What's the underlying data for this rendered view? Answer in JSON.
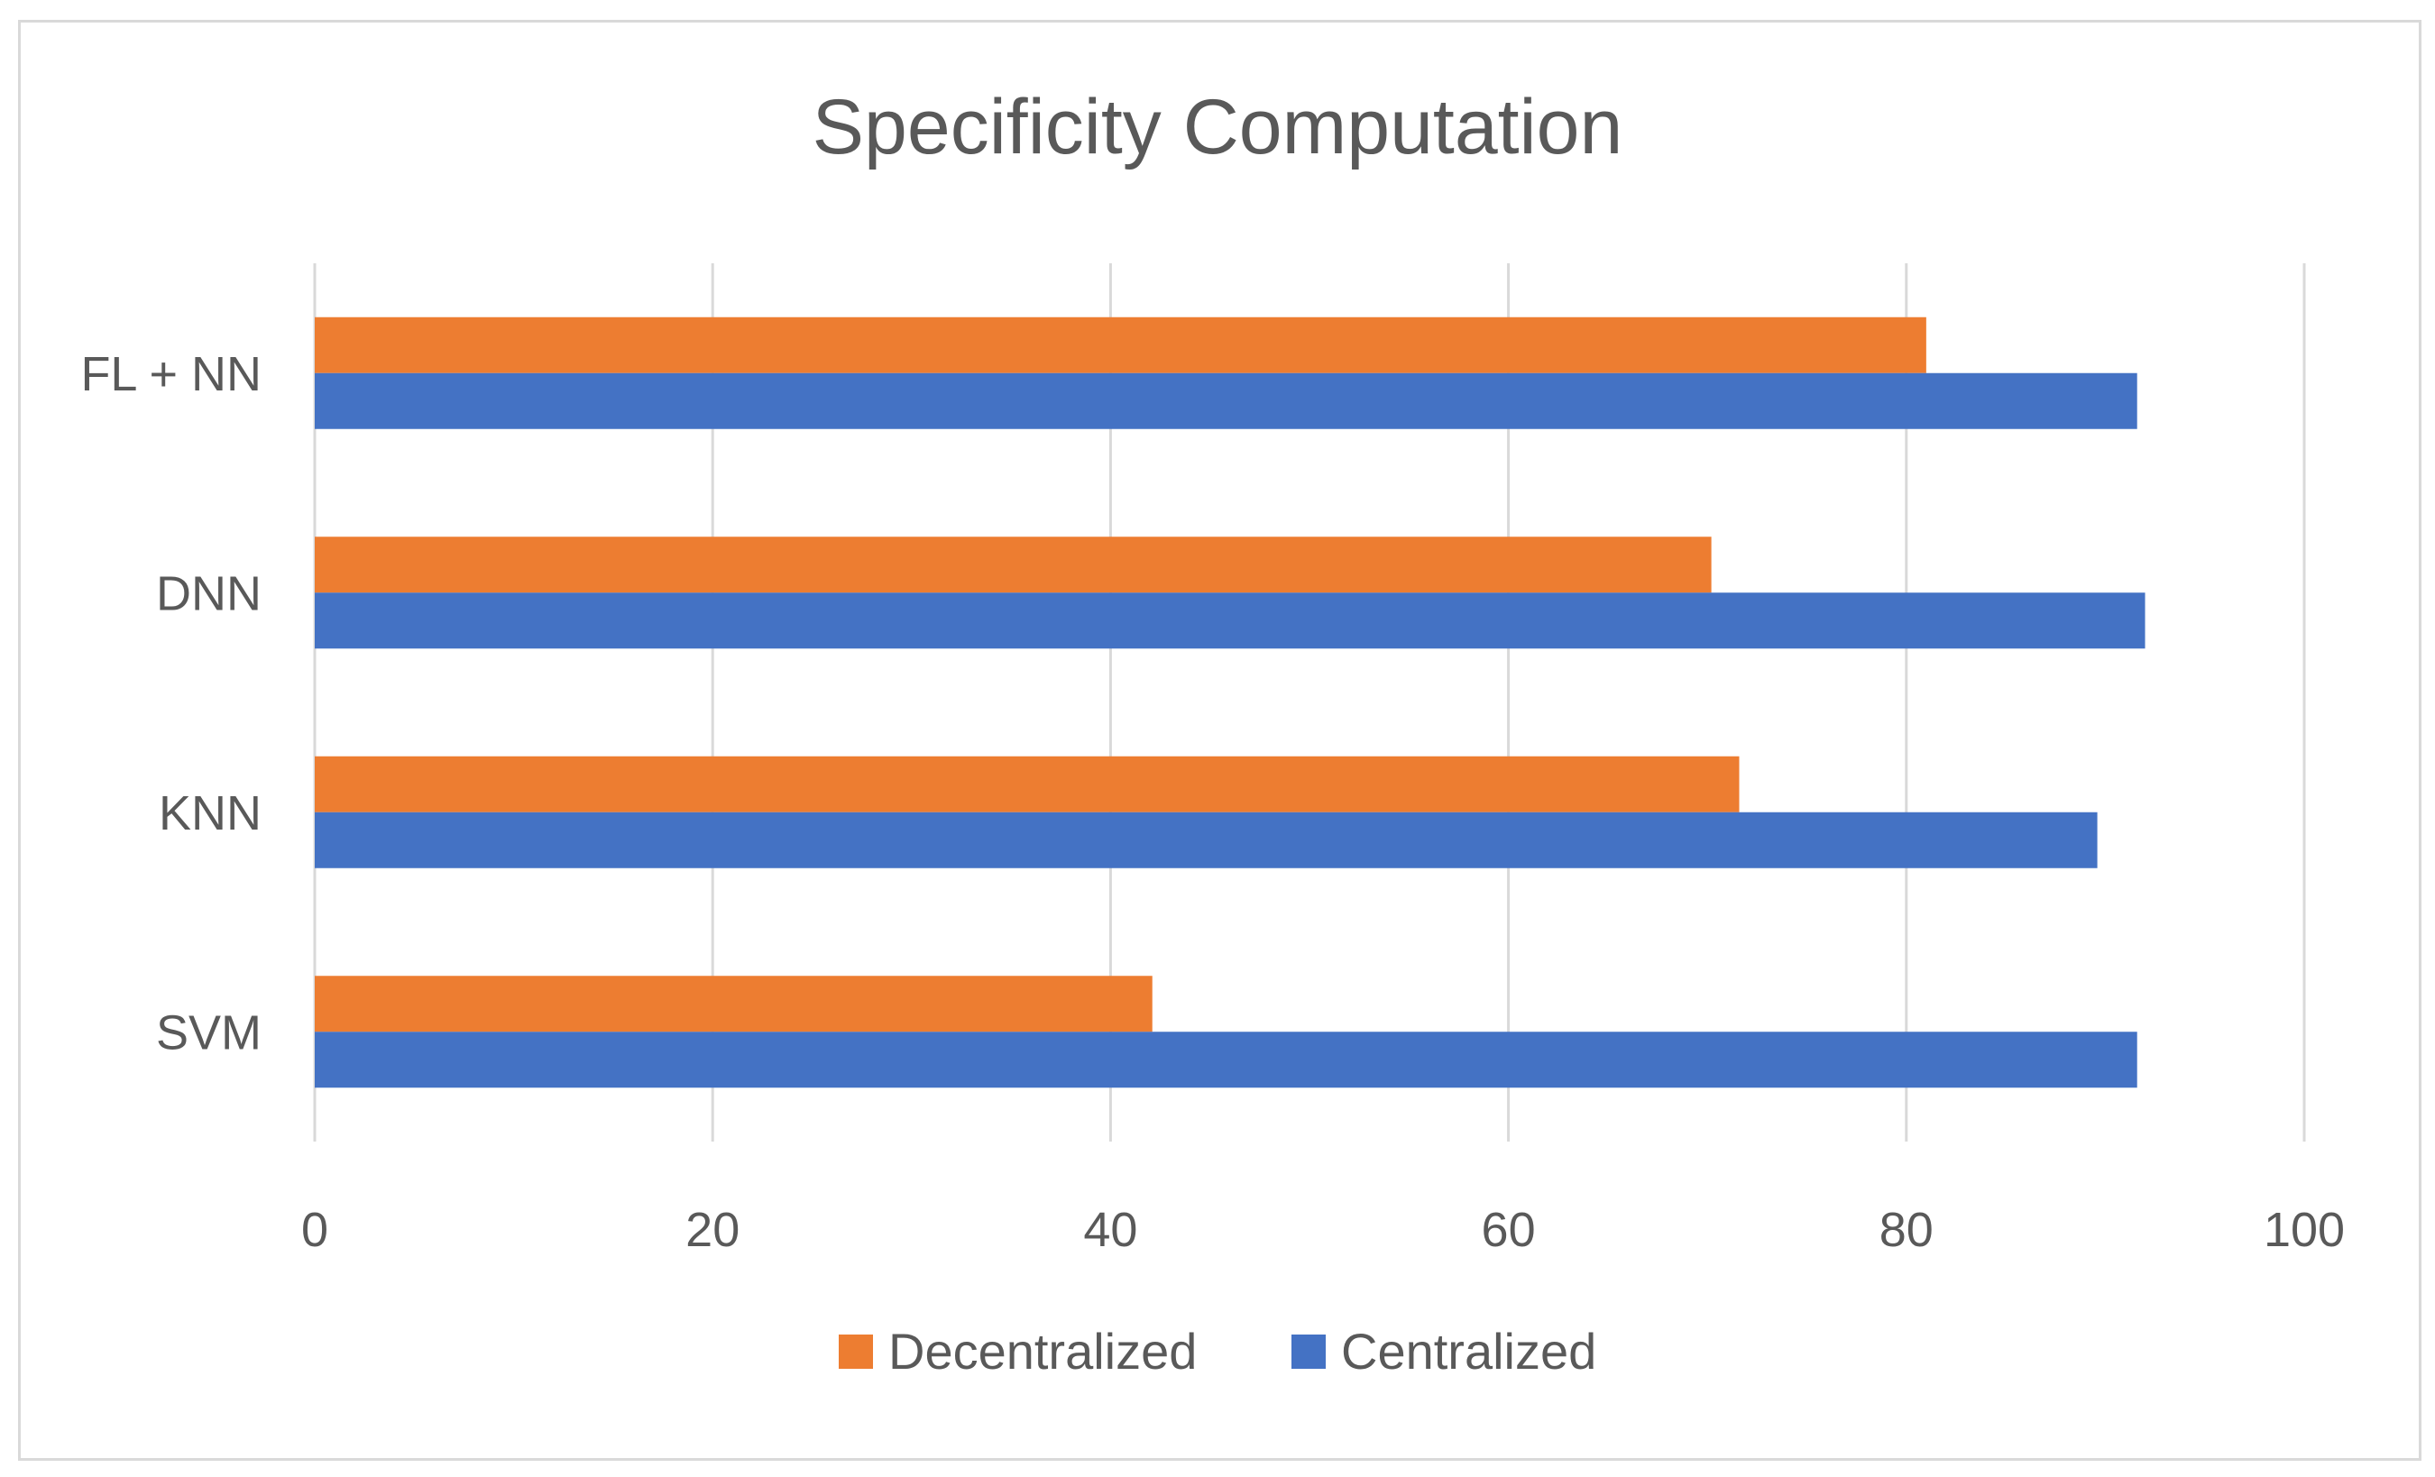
{
  "chart_data": {
    "type": "bar",
    "orientation": "horizontal",
    "title": "Specificity Computation",
    "categories": [
      "FL + NN",
      "DNN",
      "KNN",
      "SVM"
    ],
    "series": [
      {
        "name": "Decentralized",
        "color": "#ED7D31",
        "values": [
          81,
          70.2,
          71.6,
          42.1
        ]
      },
      {
        "name": "Centralized",
        "color": "#4472C4",
        "values": [
          91.6,
          92,
          89.6,
          91.6
        ]
      }
    ],
    "xlim": [
      0,
      100
    ],
    "xticks": [
      "0",
      "20",
      "40",
      "60",
      "80",
      "100"
    ],
    "xlabel": "",
    "ylabel": "",
    "grid": true,
    "legend_position": "bottom"
  }
}
